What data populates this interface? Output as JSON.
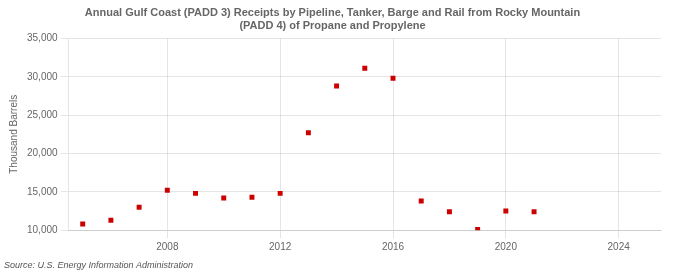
{
  "chart_data": {
    "type": "scatter",
    "title": "Annual Gulf Coast (PADD 3) Receipts by Pipeline, Tanker, Barge and Rail from Rocky Mountain\n(PADD 4) of Propane and Propylene",
    "ylabel": "Thousand Barrels",
    "annotation": "Source: U.S. Energy Information Administration",
    "x": [
      2005,
      2006,
      2007,
      2008,
      2009,
      2010,
      2011,
      2012,
      2013,
      2014,
      2015,
      2016,
      2017,
      2018,
      2019,
      2020,
      2021
    ],
    "values": [
      10800,
      11300,
      13000,
      15200,
      14800,
      14200,
      14300,
      14800,
      22700,
      28800,
      31100,
      29800,
      13800,
      12400,
      10100,
      12500,
      12400
    ],
    "color": "#CC0000",
    "marker": "square",
    "xlim": [
      2004.5,
      2025.5
    ],
    "xticks": [
      2008,
      2012,
      2016,
      2020,
      2024
    ],
    "ylim": [
      10000,
      35000
    ],
    "yticks": [
      {
        "value": 10000,
        "label": "10,000"
      },
      {
        "value": 15000,
        "label": "15,000"
      },
      {
        "value": 20000,
        "label": "20,000"
      },
      {
        "value": 25000,
        "label": "25,000"
      },
      {
        "value": 30000,
        "label": "30,000"
      },
      {
        "value": 35000,
        "label": "35,000"
      }
    ],
    "grid": true
  }
}
